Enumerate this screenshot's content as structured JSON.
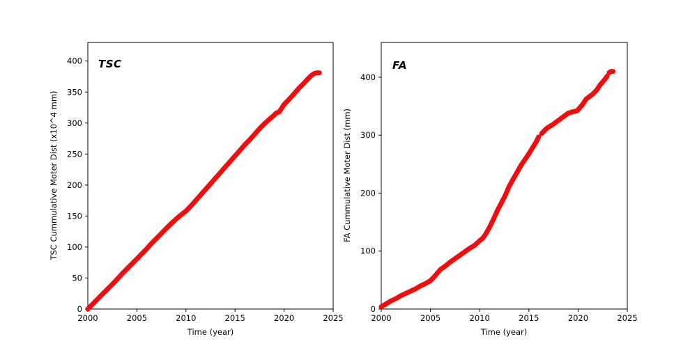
{
  "figure": {
    "background": "#ffffff",
    "axis_color": "#000000"
  },
  "chart_data": [
    {
      "id": "tsc",
      "type": "scatter",
      "annotation": "TSC",
      "xlabel": "Time (year)",
      "ylabel": "TSC Cummulative Moter Dist (x10^4 mm)",
      "xlim": [
        2000,
        2025
      ],
      "ylim": [
        0,
        430
      ],
      "xticks": [
        2000,
        2005,
        2010,
        2015,
        2020,
        2025
      ],
      "yticks": [
        0,
        50,
        100,
        150,
        200,
        250,
        300,
        350,
        400
      ],
      "grid": false,
      "legend": null,
      "marker": "dense-circles",
      "marker_color": "#f00d0d",
      "series": [
        {
          "name": "tsc-cumulative-distance",
          "segments": [
            [
              [
                2000,
                0
              ],
              [
                2000.5,
                8
              ],
              [
                2001,
                16
              ],
              [
                2001.5,
                24
              ],
              [
                2002,
                32
              ],
              [
                2002.5,
                40
              ],
              [
                2003,
                48
              ],
              [
                2003.5,
                57
              ],
              [
                2004,
                65
              ],
              [
                2004.5,
                73
              ],
              [
                2005,
                81
              ],
              [
                2005.5,
                89
              ],
              [
                2006,
                97
              ],
              [
                2006.5,
                106
              ],
              [
                2007,
                114
              ],
              [
                2007.5,
                122
              ],
              [
                2008,
                130
              ],
              [
                2008.5,
                138
              ],
              [
                2009,
                145
              ],
              [
                2009.5,
                152
              ],
              [
                2010,
                158
              ],
              [
                2010.5,
                166
              ],
              [
                2011,
                175
              ],
              [
                2011.5,
                184
              ],
              [
                2012,
                193
              ],
              [
                2012.5,
                202
              ],
              [
                2013,
                211
              ],
              [
                2013.5,
                220
              ],
              [
                2014,
                229
              ],
              [
                2014.5,
                238
              ],
              [
                2015,
                247
              ],
              [
                2015.5,
                256
              ],
              [
                2016,
                265
              ],
              [
                2016.5,
                273
              ],
              [
                2017,
                282
              ],
              [
                2017.5,
                291
              ],
              [
                2018,
                299
              ],
              [
                2018.5,
                306
              ],
              [
                2019,
                313
              ],
              [
                2019.2,
                316
              ],
              [
                2019.5,
                318
              ],
              [
                2020,
                330
              ],
              [
                2020.5,
                338
              ],
              [
                2021,
                347
              ],
              [
                2021.5,
                356
              ],
              [
                2022,
                364
              ],
              [
                2022.4,
                371
              ],
              [
                2022.8,
                377
              ],
              [
                2023.1,
                380
              ],
              [
                2023.35,
                381
              ],
              [
                2023.6,
                381
              ]
            ]
          ]
        }
      ]
    },
    {
      "id": "fa",
      "type": "scatter",
      "annotation": "FA",
      "xlabel": "Time (year)",
      "ylabel": "FA Cummulative Moter Dist (mm)",
      "xlim": [
        2000,
        2025
      ],
      "ylim": [
        0,
        460
      ],
      "xticks": [
        2000,
        2005,
        2010,
        2015,
        2020,
        2025
      ],
      "yticks": [
        0,
        100,
        200,
        300,
        400
      ],
      "grid": false,
      "legend": null,
      "marker": "dense-circles",
      "marker_color": "#f00d0d",
      "series": [
        {
          "name": "fa-cumulative-distance",
          "segments": [
            [
              [
                2000,
                4
              ],
              [
                2000.5,
                9
              ],
              [
                2001,
                14
              ],
              [
                2001.5,
                18
              ],
              [
                2002,
                23
              ],
              [
                2002.5,
                27
              ],
              [
                2003,
                31
              ],
              [
                2003.5,
                35
              ],
              [
                2004,
                40
              ],
              [
                2004.5,
                44
              ],
              [
                2005,
                49
              ],
              [
                2005.3,
                54
              ],
              [
                2005.6,
                60
              ],
              [
                2006,
                68
              ],
              [
                2006.5,
                74
              ],
              [
                2007,
                81
              ],
              [
                2007.5,
                87
              ],
              [
                2008,
                93
              ],
              [
                2008.5,
                99
              ],
              [
                2009,
                105
              ],
              [
                2009.5,
                110
              ],
              [
                2010,
                118
              ],
              [
                2010.3,
                122
              ],
              [
                2010.6,
                129
              ],
              [
                2011,
                141
              ],
              [
                2011.4,
                155
              ],
              [
                2011.8,
                170
              ],
              [
                2012.2,
                183
              ],
              [
                2012.6,
                196
              ],
              [
                2013,
                212
              ],
              [
                2013.4,
                224
              ],
              [
                2013.8,
                236
              ],
              [
                2014.2,
                248
              ],
              [
                2014.6,
                258
              ],
              [
                2015,
                268
              ],
              [
                2015.4,
                279
              ],
              [
                2015.7,
                287
              ],
              [
                2016,
                297
              ]
            ],
            [
              [
                2016.3,
                303
              ],
              [
                2016.7,
                310
              ],
              [
                2017,
                314
              ],
              [
                2017.4,
                318
              ],
              [
                2017.8,
                323
              ],
              [
                2018.2,
                328
              ],
              [
                2018.6,
                333
              ],
              [
                2019,
                338
              ],
              [
                2019.4,
                340
              ],
              [
                2019.9,
                342
              ],
              [
                2020.2,
                348
              ],
              [
                2020.5,
                354
              ],
              [
                2020.8,
                362
              ],
              [
                2021.1,
                366
              ],
              [
                2021.5,
                371
              ],
              [
                2021.9,
                378
              ],
              [
                2022.2,
                386
              ],
              [
                2022.5,
                392
              ],
              [
                2022.8,
                398
              ],
              [
                2022.95,
                402
              ]
            ],
            [
              [
                2023.15,
                408
              ],
              [
                2023.35,
                410
              ],
              [
                2023.55,
                410
              ]
            ]
          ]
        }
      ]
    }
  ]
}
